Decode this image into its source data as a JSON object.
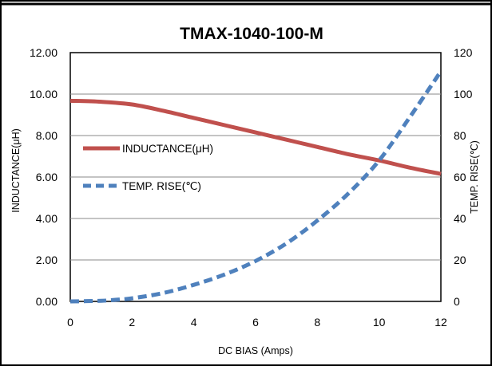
{
  "chart_data": {
    "type": "line",
    "title": "TMAX-1040-100-M",
    "xlabel": "DC BIAS  (Amps)",
    "ylabel_left": "INDUCTANCE(μH)",
    "ylabel_right": "TEMP.  RISE(℃)",
    "xlim": [
      0,
      12
    ],
    "ylim_left": [
      0,
      12
    ],
    "ylim_right": [
      0,
      120
    ],
    "x_ticks": [
      "0",
      "2",
      "4",
      "6",
      "8",
      "10",
      "12"
    ],
    "y_left_ticks": [
      "0.00",
      "2.00",
      "4.00",
      "6.00",
      "8.00",
      "10.00",
      "12.00"
    ],
    "y_right_ticks": [
      "0",
      "20",
      "40",
      "60",
      "80",
      "100",
      "120"
    ],
    "grid": "horizontal",
    "legend": "center-left",
    "series": [
      {
        "name": "INDUCTANCE(μH)",
        "axis": "left",
        "style": "solid",
        "color": "#c0504d",
        "x": [
          0,
          1,
          2,
          3,
          4,
          5,
          6,
          7,
          8,
          9,
          10,
          11,
          12
        ],
        "y": [
          9.68,
          9.63,
          9.5,
          9.2,
          8.85,
          8.5,
          8.15,
          7.8,
          7.45,
          7.1,
          6.8,
          6.45,
          6.15
        ]
      },
      {
        "name": "TEMP. RISE(℃)",
        "axis": "right",
        "style": "dashed",
        "color": "#4f81bd",
        "x": [
          0,
          1,
          1.5,
          2,
          3,
          4,
          5,
          6,
          7,
          8,
          9,
          10,
          11,
          12
        ],
        "y": [
          0,
          0.3,
          0.8,
          1.5,
          4,
          8,
          13,
          19.5,
          28,
          39,
          52,
          68,
          89,
          111
        ]
      }
    ]
  }
}
